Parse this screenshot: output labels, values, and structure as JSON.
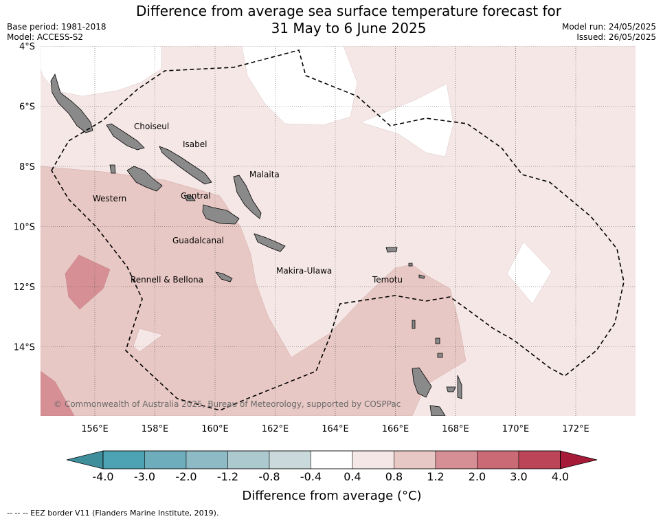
{
  "header": {
    "title_line1": "Difference from average sea surface temperature forecast for",
    "title_line2": "31 May to 6 June 2025",
    "base_period": "Base period: 1981-2018",
    "model": "Model: ACCESS-S2",
    "model_run": "Model run: 24/05/2025",
    "issued": "Issued: 26/05/2025"
  },
  "map": {
    "lat_labels": [
      "4°S",
      "6°S",
      "8°S",
      "10°S",
      "12°S",
      "14°S"
    ],
    "lon_labels": [
      "156°E",
      "158°E",
      "160°E",
      "162°E",
      "164°E",
      "166°E",
      "168°E",
      "170°E",
      "172°E"
    ],
    "places": [
      "Choiseul",
      "Isabel",
      "Malaita",
      "Western",
      "Central",
      "Guadalcanal",
      "Makira-Ulawa",
      "Rennell & Bellona",
      "Temotu"
    ],
    "copyright": "© Commonwealth of Australia 2025, Bureau of Meteorology, supported by COSPPac",
    "colors": {
      "land": "#8a8a8a",
      "above_0_4": "#f5e7e6",
      "above_0_8": "#e8c8c4",
      "above_1_2": "#d78f96",
      "above_2_0": "#ca6a75",
      "neutral": "#ffffff"
    }
  },
  "colorbar": {
    "title": "Difference from average (°C)",
    "labels": [
      "-4.0",
      "-3.0",
      "-2.0",
      "-1.2",
      "-0.8",
      "-0.4",
      "0.4",
      "0.8",
      "1.2",
      "2.0",
      "3.0",
      "4.0"
    ],
    "colors": [
      "#3f8e9c",
      "#4da2b3",
      "#6eaebc",
      "#8dbac4",
      "#abc9ce",
      "#cad9db",
      "#ffffff",
      "#f5e7e6",
      "#e8c8c4",
      "#d78f96",
      "#ca6a75",
      "#bd4558",
      "#a61b38"
    ]
  },
  "footer": {
    "eez_note": "--  --  -- EEZ border V11 (Flanders Marine Institute, 2019)."
  }
}
